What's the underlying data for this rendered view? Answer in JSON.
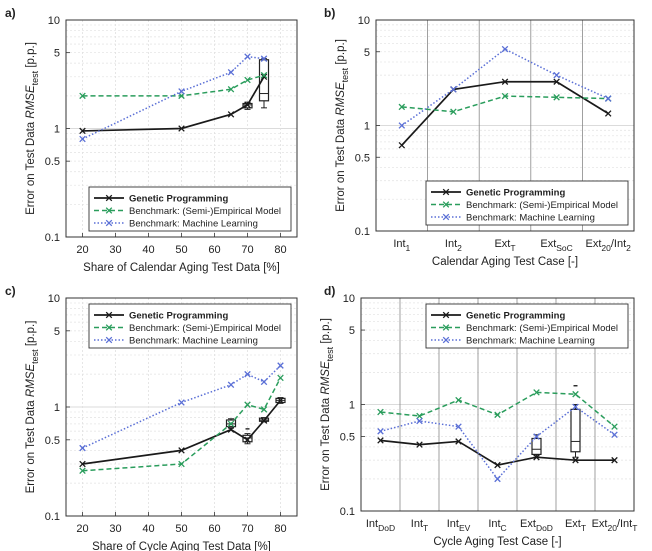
{
  "chart_data": [
    {
      "panel": "a)",
      "type": "line",
      "xlabel": "Share of Calendar Aging Test Data [%]",
      "ylabel": "Error on Test Data RMSE_test [p.p.]",
      "x_scale": "linear",
      "y_scale": "log",
      "xlim": [
        15,
        85
      ],
      "xticks": [
        "20",
        "30",
        "40",
        "50",
        "60",
        "70",
        "80"
      ],
      "ylim": [
        0.1,
        10
      ],
      "yticks": [
        "0.1",
        "0.5",
        "1",
        "5",
        "10"
      ],
      "grid": true,
      "legend_position": "bottom-right",
      "x": [
        20,
        50,
        65,
        70,
        75
      ],
      "series": [
        {
          "name": "Genetic Programming",
          "color": "#1a1a1a",
          "values": [
            0.95,
            1.0,
            1.35,
            1.65,
            3.0
          ]
        },
        {
          "name": "Benchmark: (Semi-)Empirical Model",
          "color": "#2a9d5c",
          "values": [
            2.0,
            2.0,
            2.3,
            2.8,
            3.1
          ]
        },
        {
          "name": "Benchmark: Machine Learning",
          "color": "#5a6fd6",
          "values": [
            0.8,
            2.2,
            3.3,
            4.6,
            4.4
          ]
        }
      ],
      "boxes": [
        {
          "x": 70,
          "q1": 1.55,
          "median": 1.65,
          "q3": 1.7,
          "low": 1.5,
          "high": 1.75
        },
        {
          "x": 75,
          "q1": 1.8,
          "median": 2.1,
          "q3": 4.3,
          "low": 1.55,
          "high": 4.4
        }
      ]
    },
    {
      "panel": "b)",
      "type": "line",
      "xlabel": "Calendar Aging Test Case [-]",
      "ylabel": "Error on Test Data RMSE_test [p.p.]",
      "y_scale": "log",
      "ylim": [
        0.1,
        10
      ],
      "yticks": [
        "0.1",
        "0.5",
        "1",
        "5",
        "10"
      ],
      "grid": true,
      "legend_position": "bottom-right",
      "categories": [
        "Int1",
        "Int2",
        "ExtT",
        "ExtSoC",
        "Ext20/Int2"
      ],
      "category_labels": [
        {
          "main": "Int",
          "sub": "1",
          "tail": ""
        },
        {
          "main": "Int",
          "sub": "2",
          "tail": ""
        },
        {
          "main": "Ext",
          "sub": "T",
          "tail": ""
        },
        {
          "main": "Ext",
          "sub": "SoC",
          "tail": ""
        },
        {
          "main": "Ext",
          "sub": "20",
          "tail": "/Int",
          "sub2": "2"
        }
      ],
      "series": [
        {
          "name": "Genetic Programming",
          "color": "#1a1a1a",
          "values": [
            0.65,
            2.2,
            2.6,
            2.6,
            1.3
          ]
        },
        {
          "name": "Benchmark: (Semi-)Empirical Model",
          "color": "#2a9d5c",
          "values": [
            1.5,
            1.35,
            1.9,
            1.85,
            1.8
          ]
        },
        {
          "name": "Benchmark: Machine Learning",
          "color": "#5a6fd6",
          "values": [
            1.0,
            2.2,
            5.3,
            3.0,
            1.8
          ]
        }
      ]
    },
    {
      "panel": "c)",
      "type": "line",
      "xlabel": "Share of Cycle Aging Test Data [%]",
      "ylabel": "Error on Test Data RMSE_test [p.p.]",
      "x_scale": "linear",
      "y_scale": "log",
      "xlim": [
        15,
        85
      ],
      "xticks": [
        "20",
        "30",
        "40",
        "50",
        "60",
        "70",
        "80"
      ],
      "ylim": [
        0.1,
        10
      ],
      "yticks": [
        "0.1",
        "0.5",
        "1",
        "5",
        "10"
      ],
      "grid": true,
      "legend_position": "top-right",
      "x": [
        20,
        50,
        65,
        70,
        75,
        80
      ],
      "series": [
        {
          "name": "Genetic Programming",
          "color": "#1a1a1a",
          "values": [
            0.3,
            0.4,
            0.62,
            0.5,
            0.75,
            1.15
          ]
        },
        {
          "name": "Benchmark: (Semi-)Empirical Model",
          "color": "#2a9d5c",
          "values": [
            0.26,
            0.3,
            0.7,
            1.05,
            0.95,
            1.85
          ]
        },
        {
          "name": "Benchmark: Machine Learning",
          "color": "#5a6fd6",
          "values": [
            0.42,
            1.1,
            1.6,
            2.0,
            1.7,
            2.4
          ]
        }
      ],
      "boxes": [
        {
          "x": 65,
          "q1": 0.66,
          "median": 0.7,
          "q3": 0.76,
          "low": 0.64,
          "high": 0.78
        },
        {
          "x": 70,
          "q1": 0.48,
          "median": 0.52,
          "q3": 0.55,
          "low": 0.46,
          "high": 0.57
        },
        {
          "x": 75,
          "q1": 0.74,
          "median": 0.76,
          "q3": 0.79,
          "low": 0.73,
          "high": 0.8
        },
        {
          "x": 80,
          "q1": 1.1,
          "median": 1.15,
          "q3": 1.2,
          "low": 1.08,
          "high": 1.22
        }
      ],
      "outliers": [
        {
          "x": 70,
          "y": 0.63
        }
      ]
    },
    {
      "panel": "d)",
      "type": "line",
      "xlabel": "Cycle Aging Test Case [-]",
      "ylabel": "Error on Test Data RMSE_test [p.p.]",
      "y_scale": "log",
      "ylim": [
        0.1,
        10
      ],
      "yticks": [
        "0.1",
        "0.5",
        "1",
        "5",
        "10"
      ],
      "grid": true,
      "legend_position": "top-right",
      "categories": [
        "IntDoD",
        "IntT",
        "IntEV",
        "IntC",
        "ExtDoD",
        "ExtT",
        "Ext20/IntT"
      ],
      "category_labels": [
        {
          "main": "Int",
          "sub": "DoD",
          "tail": ""
        },
        {
          "main": "Int",
          "sub": "T",
          "tail": ""
        },
        {
          "main": "Int",
          "sub": "EV",
          "tail": ""
        },
        {
          "main": "Int",
          "sub": "C",
          "tail": ""
        },
        {
          "main": "Ext",
          "sub": "DoD",
          "tail": ""
        },
        {
          "main": "Ext",
          "sub": "T",
          "tail": ""
        },
        {
          "main": "Ext",
          "sub": "20",
          "tail": "/Int",
          "sub2": "T"
        }
      ],
      "series": [
        {
          "name": "Genetic Programming",
          "color": "#1a1a1a",
          "values": [
            0.46,
            0.42,
            0.45,
            0.27,
            0.32,
            0.3,
            0.3
          ]
        },
        {
          "name": "Benchmark: (Semi-)Empirical Model",
          "color": "#2a9d5c",
          "values": [
            0.85,
            0.78,
            1.1,
            0.8,
            1.3,
            1.25,
            0.62
          ]
        },
        {
          "name": "Benchmark: Machine Learning",
          "color": "#5a6fd6",
          "values": [
            0.56,
            0.7,
            0.62,
            0.2,
            0.5,
            0.95,
            0.52
          ]
        }
      ],
      "boxes": [
        {
          "x": 4,
          "q1": 0.34,
          "median": 0.38,
          "q3": 0.48,
          "low": 0.33,
          "high": 0.52
        },
        {
          "x": 5,
          "q1": 0.36,
          "median": 0.45,
          "q3": 0.9,
          "low": 0.32,
          "high": 1.0
        }
      ],
      "outliers": [
        {
          "x": 5,
          "y": 1.5
        }
      ]
    }
  ]
}
